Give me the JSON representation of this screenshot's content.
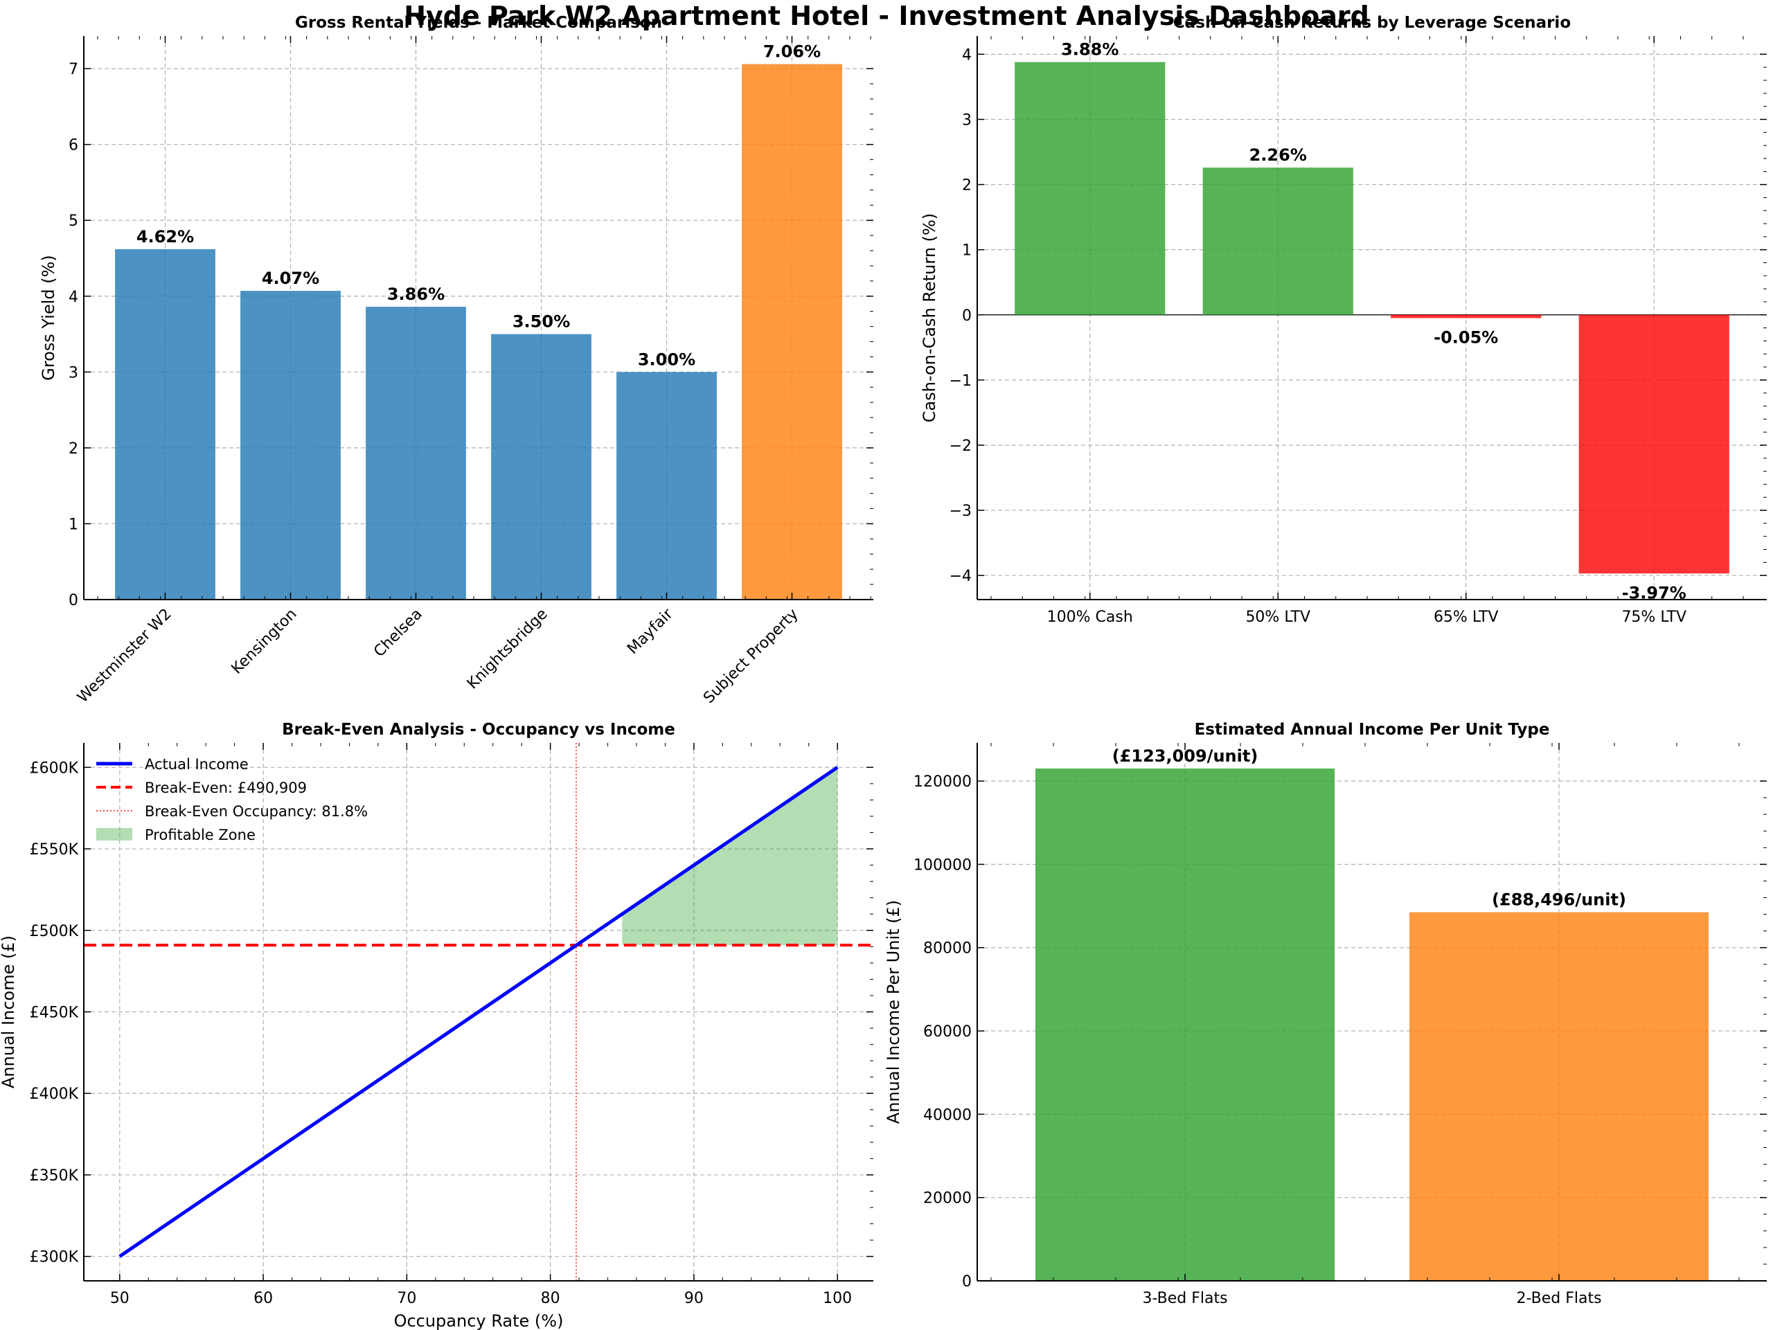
{
  "suptitle": "Hyde Park W2 Apartment Hotel - Investment Analysis Dashboard",
  "chart_data": [
    {
      "id": "yields",
      "type": "bar",
      "title": "Gross Rental Yields - Market Comparison",
      "xlabel": "",
      "ylabel": "Gross Yield (%)",
      "categories": [
        "Westminster W2",
        "Kensington",
        "Chelsea",
        "Knightsbridge",
        "Mayfair",
        "Subject Property"
      ],
      "values": [
        4.62,
        4.07,
        3.86,
        3.5,
        3.0,
        7.06
      ],
      "value_labels": [
        "4.62%",
        "4.07%",
        "3.86%",
        "3.50%",
        "3.00%",
        "7.06%"
      ],
      "colors": [
        "#1f77b4",
        "#1f77b4",
        "#1f77b4",
        "#1f77b4",
        "#1f77b4",
        "#ff7f0e"
      ],
      "ylim": [
        0,
        7.43
      ],
      "yticks": [
        0,
        1,
        2,
        3,
        4,
        5,
        6,
        7
      ],
      "grid": true
    },
    {
      "id": "coc",
      "type": "bar",
      "title": "Cash-on-Cash Returns by Leverage Scenario",
      "xlabel": "",
      "ylabel": "Cash-on-Cash Return (%)",
      "categories": [
        "100% Cash",
        "50% LTV",
        "65% LTV",
        "75% LTV"
      ],
      "values": [
        3.88,
        2.26,
        -0.05,
        -3.97
      ],
      "value_labels": [
        "3.88%",
        "2.26%",
        "-0.05%",
        "-3.97%"
      ],
      "colors": [
        "#2ca02c",
        "#2ca02c",
        "#ff0000",
        "#ff0000"
      ],
      "ylim": [
        -4.37,
        4.28
      ],
      "yticks": [
        -4,
        -3,
        -2,
        -1,
        0,
        1,
        2,
        3,
        4
      ],
      "ytick_labels": [
        "−4",
        "−3",
        "−2",
        "−1",
        "0",
        "1",
        "2",
        "3",
        "4"
      ],
      "grid": true
    },
    {
      "id": "breakeven",
      "type": "line",
      "title": "Break-Even Analysis - Occupancy vs Income",
      "xlabel": "Occupancy Rate (%)",
      "ylabel": "Annual Income (£)",
      "x": [
        50,
        100
      ],
      "series": [
        {
          "name": "Actual Income",
          "x": [
            50,
            100
          ],
          "y": [
            300000,
            600000
          ],
          "color": "#0000ff"
        }
      ],
      "break_even": {
        "name": "Break-Even: £490,909",
        "value": 490909,
        "color": "#ff0000"
      },
      "break_even_occupancy": {
        "name": "Break-Even Occupancy: 81.8%",
        "value": 81.8,
        "color": "#ff0000"
      },
      "profitable_zone": {
        "name": "Profitable Zone",
        "x_from": 85,
        "x_to": 100,
        "color": "#2ca02c"
      },
      "xlim": [
        47.5,
        102.5
      ],
      "ylim": [
        285000,
        615000
      ],
      "xticks": [
        50,
        60,
        70,
        80,
        90,
        100
      ],
      "yticks": [
        300000,
        350000,
        400000,
        450000,
        500000,
        550000,
        600000
      ],
      "ytick_labels": [
        "£300K",
        "£350K",
        "£400K",
        "£450K",
        "£500K",
        "£550K",
        "£600K"
      ],
      "legend": "top-left",
      "grid": true
    },
    {
      "id": "unit_income",
      "type": "bar",
      "title": "Estimated Annual Income Per Unit Type",
      "xlabel": "",
      "ylabel": "Annual Income Per Unit (£)",
      "categories": [
        "3-Bed Flats",
        "2-Bed Flats"
      ],
      "values": [
        123009,
        88496
      ],
      "value_labels": [
        "(£123,009/unit)",
        "(£88,496/unit)"
      ],
      "colors": [
        "#2ca02c",
        "#ff7f0e"
      ],
      "ylim": [
        0,
        129159
      ],
      "yticks": [
        0,
        20000,
        40000,
        60000,
        80000,
        100000,
        120000
      ],
      "ytick_labels": [
        "0",
        "20000",
        "40000",
        "60000",
        "80000",
        "100000",
        "120000"
      ],
      "grid": true
    }
  ]
}
